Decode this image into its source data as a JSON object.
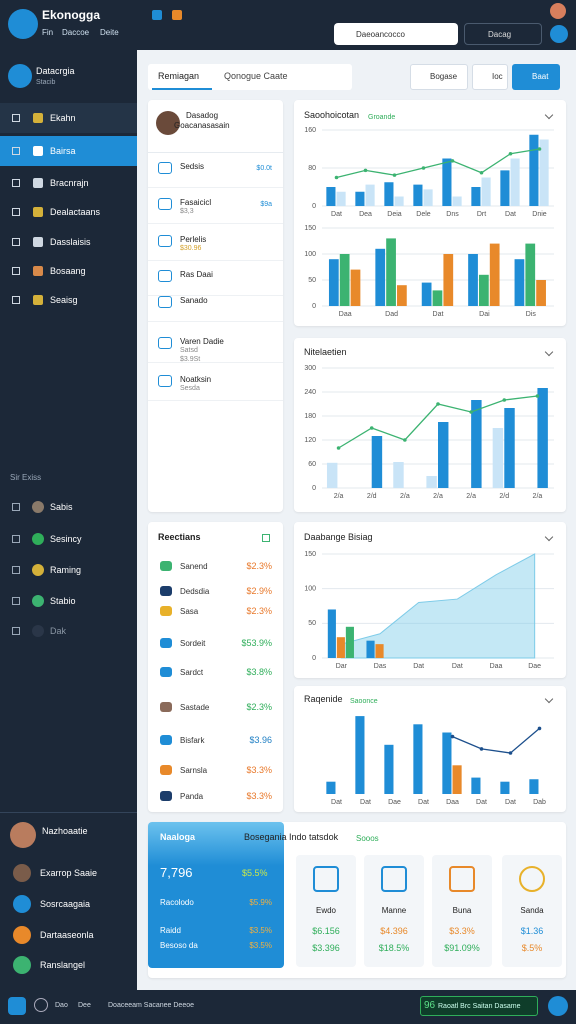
{
  "ui": {
    "app": {
      "title": "Ekonogga",
      "tabs": [
        "Fin",
        "Daccoe",
        "Deite"
      ],
      "search": "Daeoancocco",
      "search2": "Dacag"
    },
    "user": {
      "name": "Datacrgia",
      "role": "Stacib"
    },
    "nav": [
      "Ekahn",
      "Bairsa",
      "Bracnrajn",
      "Dealactaans",
      "Dasslaisis",
      "Bosaang",
      "Seaisg"
    ],
    "section": {
      "title": "Sir Exiss",
      "items": [
        "Sabis",
        "Sesincy",
        "Raming",
        "Stabio",
        "Dak"
      ]
    },
    "people": {
      "title": "Nazhoaatie",
      "items": [
        "Exarrop Saaie",
        "Sosrcaagaia",
        "Dartaaseonla",
        "Ranslangel"
      ]
    },
    "toolbar": {
      "tabs": [
        "Remiagan",
        "Qonogue Caate"
      ],
      "buttons": [
        "Bogase",
        "Ioc",
        "Baat"
      ]
    },
    "profile": {
      "name": "Dasadog",
      "title": "Goacanasasain"
    },
    "list": [
      {
        "title": "Sedsis",
        "value": "$0.0t"
      },
      {
        "title": "Fasaicicl",
        "sub": "$3,3",
        "value": "$9a"
      },
      {
        "title": "Perlelis",
        "sub": "$30.96"
      },
      {
        "title": "Ras Daai"
      },
      {
        "title": "Sanado"
      },
      {
        "title": "Varen Dadie",
        "sub": "Satsd",
        "sub2": "$3.9St"
      },
      {
        "title": "Noatksin",
        "sub": "Sesda"
      }
    ],
    "transactions": {
      "title": "Reectians",
      "items": [
        {
          "name": "Sanend",
          "amount": "$2.3%",
          "color": "#e8782a"
        },
        {
          "name": "Dedsdia",
          "amount": "$2.9%",
          "color": "#e8782a"
        },
        {
          "name": "Sasa",
          "amount": "$2.3%",
          "color": "#e8782a"
        },
        {
          "name": "Sordeit",
          "amount": "$53.9%",
          "color": "#2fae5a"
        },
        {
          "name": "Sardct",
          "amount": "$3.8%",
          "color": "#2fae5a"
        },
        {
          "name": "Sastade",
          "amount": "$2.3%",
          "color": "#2fae5a"
        },
        {
          "name": "Bisfark",
          "amount": "$3.96",
          "color": "#1f7fc4"
        },
        {
          "name": "Sarnsla",
          "amount": "$3.3%",
          "color": "#e8782a"
        },
        {
          "name": "Panda",
          "amount": "$3.3%",
          "color": "#e8782a"
        }
      ]
    },
    "bottom": {
      "title": "Naaloga",
      "subtitle": "Bosegania Indo tatsdok",
      "badge": "Sooos",
      "big": "7,796",
      "big_value": "$5.5%",
      "rows": [
        {
          "label": "Racolodo",
          "value": "$5.9%"
        },
        {
          "label": "Raidd",
          "value": "$3.5%"
        },
        {
          "label": "Besoso da",
          "value": "$3.5%"
        }
      ],
      "cards": [
        {
          "title": "Ewdo",
          "v1": "$6.156",
          "v2": "$3.396"
        },
        {
          "title": "Manne",
          "v1": "$4.396",
          "v2": "$18.5%"
        },
        {
          "title": "Buna",
          "v1": "$3.3%",
          "v2": "$91.09%"
        },
        {
          "title": "Sanda",
          "v1": "$1.36",
          "v2": "$.5%"
        }
      ]
    },
    "footer": {
      "items": [
        "Dao",
        "Dee",
        "Doaceeam Sacanee Deeoe"
      ],
      "badge": "96",
      "badge_text": "Raoatl Brc Saitan Dasame"
    }
  },
  "chart_data": [
    {
      "type": "bar",
      "title": "Saoohoicotan",
      "badge": "Groande",
      "categories": [
        "Dat",
        "Dea",
        "Deia",
        "Dele",
        "Dns",
        "Drt",
        "Dat",
        "Dnie"
      ],
      "ylim": [
        0,
        160
      ],
      "yticks": [
        0,
        80,
        160
      ],
      "grid": true,
      "series": [
        {
          "color": "#1f8dd6",
          "values": [
            40,
            30,
            50,
            45,
            100,
            40,
            75,
            150
          ]
        },
        {
          "color": "#c9e4f7",
          "values": [
            30,
            45,
            20,
            35,
            20,
            60,
            100,
            140
          ]
        },
        {
          "type": "line",
          "color": "#3cb371",
          "values": [
            60,
            75,
            65,
            80,
            95,
            70,
            110,
            120
          ]
        }
      ]
    },
    {
      "type": "bar",
      "categories": [
        "Daa",
        "Dad",
        "Dat",
        "Dai",
        "Dis"
      ],
      "ylim": [
        0,
        150
      ],
      "yticks": [
        0,
        50,
        100,
        150
      ],
      "grid": true,
      "series": [
        {
          "color": "#1f8dd6",
          "values": [
            90,
            110,
            45,
            100,
            90
          ]
        },
        {
          "color": "#3cb371",
          "values": [
            100,
            130,
            30,
            60,
            120
          ]
        },
        {
          "color": "#e8892a",
          "values": [
            70,
            40,
            100,
            120,
            50
          ]
        }
      ]
    },
    {
      "type": "bar",
      "title": "Nitelaetien",
      "categories": [
        "2/a",
        "2/d",
        "2/a",
        "2/a",
        "2/a",
        "2/d",
        "2/a"
      ],
      "ylim": [
        0,
        300
      ],
      "yticks": [
        0,
        60,
        120,
        180,
        240,
        300
      ],
      "grid": true,
      "series": [
        {
          "color": "#c9e4f7",
          "values": [
            63,
            null,
            65,
            30,
            null,
            150,
            null
          ]
        },
        {
          "color": "#1f8dd6",
          "values": [
            null,
            130,
            null,
            165,
            220,
            200,
            250
          ]
        },
        {
          "type": "line",
          "color": "#3cb371",
          "values": [
            100,
            150,
            120,
            210,
            190,
            220,
            230
          ]
        }
      ]
    },
    {
      "type": "bar",
      "title": "Daabange Bisiag",
      "categories": [
        "Dar",
        "Das",
        "Dat",
        "Dat",
        "Daa",
        "Dae"
      ],
      "ylim": [
        0,
        150
      ],
      "yticks": [
        0,
        50,
        100,
        150
      ],
      "grid": true,
      "series": [
        {
          "type": "area",
          "color": "#7dcbe8",
          "values": [
            20,
            35,
            80,
            85,
            120,
            150
          ]
        },
        {
          "color": "#1f8dd6",
          "values": [
            70,
            25,
            null,
            null,
            null,
            null
          ]
        },
        {
          "color": "#e8892a",
          "values": [
            30,
            20,
            null,
            null,
            null,
            null
          ]
        },
        {
          "color": "#3cb371",
          "values": [
            45,
            null,
            null,
            null,
            null,
            null
          ]
        }
      ]
    },
    {
      "type": "bar",
      "title": "Raqenide",
      "badge": "Saoonce",
      "categories": [
        "Dat",
        "Dat",
        "Dae",
        "Dat",
        "Daa",
        "Dat",
        "Dat",
        "Dab"
      ],
      "ylim": [
        0,
        100
      ],
      "grid": false,
      "series": [
        {
          "color": "#1f8dd6",
          "values": [
            15,
            95,
            60,
            85,
            75,
            20,
            15,
            18
          ]
        },
        {
          "color": "#e8892a",
          "values": [
            null,
            null,
            null,
            null,
            35,
            null,
            null,
            null
          ]
        },
        {
          "type": "line",
          "color": "#1c4f8c",
          "values": [
            null,
            null,
            null,
            null,
            70,
            55,
            50,
            80
          ]
        }
      ]
    }
  ]
}
